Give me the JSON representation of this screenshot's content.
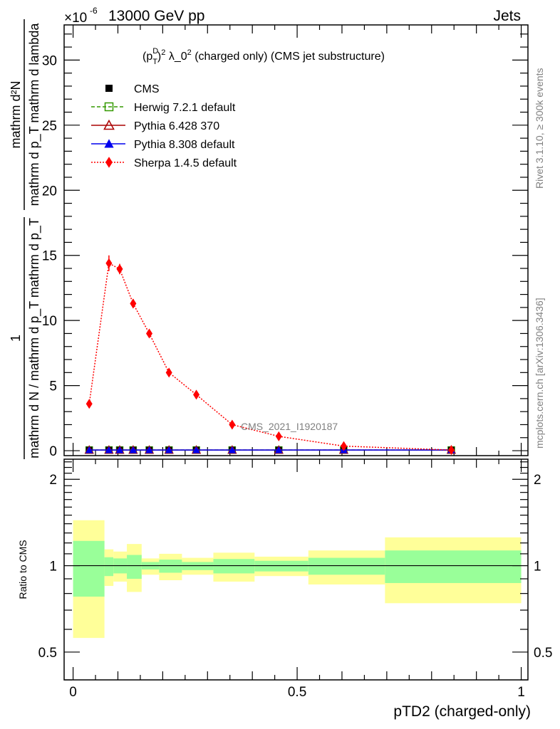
{
  "chart_data": {
    "type": "line",
    "header_left": "13000 GeV pp",
    "header_right": "Jets",
    "exponent_label": "×10",
    "exponent_power": "-6",
    "title_parts": {
      "p": "(p",
      "sup_d": "D",
      "sub_t": "T",
      "close": ")",
      "sup2": "2",
      "lambda": " λ_0",
      "sup2b": "2",
      "rest": " (charged only) (CMS jet substructure)"
    },
    "ylabel_frac1_num": "1",
    "ylabel_frac1_den": "mathrm d N / mathrm d p_T mathrm d p_T",
    "ylabel_frac2_num": "mathrm d²N",
    "ylabel_frac2_den": "mathrm d p_T mathrm d lambda",
    "ratio_ylabel": "Ratio to CMS",
    "xlabel": "pTD2 (charged-only)",
    "side_text_rivet": "Rivet 3.1.10, ≥ 300k events",
    "side_text_mcplots": "mcplots.cern.ch [arXiv:1306.3436]",
    "watermark": "CMS_2021_I1920187",
    "xlim": [
      -0.02,
      1.015
    ],
    "ylim": [
      -0.38,
      32.7
    ],
    "ratio_ylim": [
      0.4,
      2.35
    ],
    "ratio_scale": "log",
    "xticks": [
      "0",
      "0.5",
      "1"
    ],
    "yticks": [
      "0",
      "5",
      "10",
      "15",
      "20",
      "25",
      "30"
    ],
    "ratio_yticks": [
      "0.5",
      "1",
      "2"
    ],
    "legend_position": "top-left",
    "legend": [
      {
        "name": "CMS",
        "color": "#000000",
        "marker": "square-filled",
        "line": "none"
      },
      {
        "name": "Herwig 7.2.1 default",
        "color": "#339900",
        "marker": "square-open",
        "line": "dashed"
      },
      {
        "name": "Pythia 6.428 370",
        "color": "#aa0000",
        "marker": "triangle-open",
        "line": "solid"
      },
      {
        "name": "Pythia 8.308 default",
        "color": "#0000ee",
        "marker": "triangle-filled",
        "line": "solid"
      },
      {
        "name": "Sherpa 1.4.5 default",
        "color": "#ff0000",
        "marker": "diamond-filled",
        "line": "dotted"
      }
    ],
    "bin_edges": [
      0,
      0.07,
      0.09,
      0.12,
      0.153,
      0.192,
      0.243,
      0.313,
      0.405,
      0.525,
      0.696,
      1.0
    ],
    "x": [
      0.036,
      0.08,
      0.104,
      0.134,
      0.17,
      0.214,
      0.275,
      0.355,
      0.459,
      0.604,
      0.844
    ],
    "series": [
      {
        "name": "CMS",
        "values": [
          0.05,
          0.05,
          0.05,
          0.05,
          0.05,
          0.05,
          0.05,
          0.05,
          0.05,
          0.05,
          0.05
        ]
      },
      {
        "name": "Herwig 7.2.1 default",
        "values": [
          0.05,
          0.05,
          0.05,
          0.05,
          0.05,
          0.05,
          0.05,
          0.05,
          0.05,
          0.05,
          0.05
        ]
      },
      {
        "name": "Pythia 6.428 370",
        "values": [
          0.05,
          0.05,
          0.05,
          0.05,
          0.05,
          0.05,
          0.05,
          0.05,
          0.05,
          0.05,
          0.05
        ]
      },
      {
        "name": "Pythia 8.308 default",
        "values": [
          0.05,
          0.05,
          0.05,
          0.05,
          0.05,
          0.05,
          0.05,
          0.05,
          0.05,
          0.05,
          0.05
        ]
      },
      {
        "name": "Sherpa 1.4.5 default",
        "values": [
          3.6,
          14.4,
          13.95,
          11.3,
          9.0,
          6.0,
          4.3,
          2.0,
          1.1,
          0.35,
          0.05
        ],
        "errors": [
          0.15,
          0.6,
          0.4,
          0.35,
          0.3,
          0.2,
          0.15,
          0.1,
          0.1,
          0.05,
          0.02
        ]
      }
    ],
    "ratio_band_stat": {
      "color": "#99ff99",
      "up": [
        1.22,
        1.07,
        1.06,
        1.09,
        1.03,
        1.05,
        1.03,
        1.055,
        1.04,
        1.065,
        1.13
      ],
      "down": [
        0.78,
        0.92,
        0.94,
        0.9,
        0.97,
        0.945,
        0.965,
        0.94,
        0.955,
        0.93,
        0.87
      ]
    },
    "ratio_band_total": {
      "color": "#ffff99",
      "up": [
        1.44,
        1.14,
        1.12,
        1.19,
        1.06,
        1.1,
        1.065,
        1.11,
        1.075,
        1.13,
        1.255
      ],
      "down": [
        0.56,
        0.85,
        0.88,
        0.81,
        0.93,
        0.89,
        0.93,
        0.88,
        0.92,
        0.86,
        0.74
      ]
    }
  }
}
